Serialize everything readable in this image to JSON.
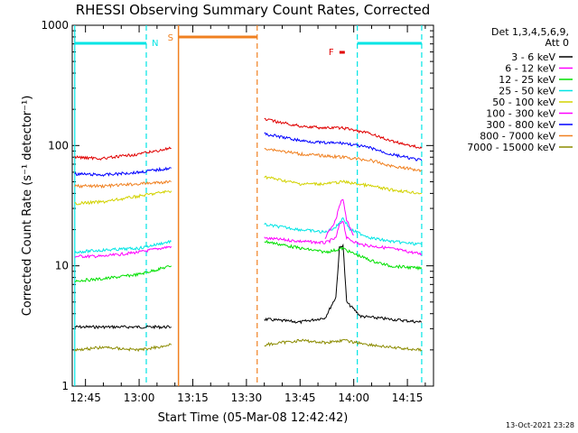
{
  "chart_data": {
    "type": "line",
    "title": "RHESSI Observing Summary Count Rates, Corrected",
    "xlabel": "Start Time (05-Mar-08 12:42:42)",
    "ylabel": "Corrected Count Rate (s⁻¹ detector⁻¹)",
    "timestamp": "13-Oct-2021 23:28",
    "x_scale": "time",
    "y_scale": "log",
    "xlim": [
      "12:42",
      "14:22"
    ],
    "ylim": [
      1,
      1000
    ],
    "x_ticks": [
      "12:45",
      "13:00",
      "13:15",
      "13:30",
      "13:45",
      "14:00",
      "14:15"
    ],
    "y_ticks": [
      "1",
      "10",
      "100",
      "1000"
    ],
    "grid": false,
    "legend_title": [
      "Det 1,3,4,5,6,9,",
      "Att 0"
    ],
    "legend_position": "right",
    "time_markers": [
      {
        "label": "N",
        "color": "#00e5e5",
        "start": "12:42",
        "end": "13:02",
        "style": "night"
      },
      {
        "label": "S",
        "color": "#f08020",
        "start": "13:11",
        "end": "13:33",
        "style": "saa"
      },
      {
        "label": "F",
        "color": "#e00000",
        "start": "13:56",
        "end": "13:57",
        "style": "flare"
      },
      {
        "label": "",
        "color": "#00e5e5",
        "start": "14:01",
        "end": "14:19",
        "style": "night"
      }
    ],
    "series": [
      {
        "name": "3 - 6 keV",
        "color": "#000000",
        "segments": [
          {
            "x": [
              "12:42",
              "12:50",
              "13:00",
              "13:09"
            ],
            "y": [
              3.1,
              3.1,
              3.1,
              3.1
            ]
          },
          {
            "x": [
              "13:35",
              "13:45",
              "13:52",
              "13:55",
              "13:56",
              "13:57",
              "13:58",
              "14:02",
              "14:10",
              "14:19"
            ],
            "y": [
              3.6,
              3.4,
              3.7,
              5.5,
              14,
              15,
              5.0,
              3.8,
              3.6,
              3.4
            ]
          }
        ]
      },
      {
        "name": "6 - 12 keV",
        "color": "#ff00ff",
        "segments": [
          {
            "x": [
              "12:42",
              "12:50",
              "13:00",
              "13:09"
            ],
            "y": [
              12,
              12,
              13,
              14.5
            ]
          },
          {
            "x": [
              "13:35",
              "13:45",
              "13:52",
              "13:55",
              "13:56",
              "13:57",
              "13:58",
              "14:02",
              "14:10",
              "14:19"
            ],
            "y": [
              17,
              16,
              15.5,
              17,
              22,
              24,
              17,
              15,
              14,
              12.5
            ]
          }
        ]
      },
      {
        "name": "12 - 25 keV",
        "color": "#00e000",
        "segments": [
          {
            "x": [
              "12:42",
              "12:50",
              "13:00",
              "13:09"
            ],
            "y": [
              7.5,
              7.8,
              8.5,
              10
            ]
          },
          {
            "x": [
              "13:35",
              "13:45",
              "13:52",
              "13:55",
              "13:57",
              "13:59",
              "14:05",
              "14:10",
              "14:19"
            ],
            "y": [
              16,
              14,
              13,
              13.5,
              14,
              13,
              11,
              10,
              9.5
            ]
          }
        ]
      },
      {
        "name": "25 - 50 keV",
        "color": "#00e5e5",
        "segments": [
          {
            "x": [
              "12:42",
              "12:50",
              "13:00",
              "13:09"
            ],
            "y": [
              13,
              13.5,
              14,
              16
            ]
          },
          {
            "x": [
              "13:35",
              "13:45",
              "13:52",
              "13:55",
              "13:57",
              "13:59",
              "14:05",
              "14:10",
              "14:19"
            ],
            "y": [
              22,
              20,
              19,
              21,
              25,
              20,
              17,
              16,
              15
            ]
          }
        ]
      },
      {
        "name": "50 - 100 keV",
        "color": "#d2d200",
        "segments": [
          {
            "x": [
              "12:42",
              "12:50",
              "13:00",
              "13:09"
            ],
            "y": [
              33,
              34,
              38,
              42
            ]
          },
          {
            "x": [
              "13:35",
              "13:45",
              "13:52",
              "13:57",
              "14:05",
              "14:10",
              "14:19"
            ],
            "y": [
              55,
              48,
              48,
              50,
              46,
              43,
              40
            ]
          }
        ]
      },
      {
        "name": "100 - 300 keV",
        "color": "#ff00ff",
        "segments": [
          {
            "x": [
              "13:52",
              "13:55",
              "13:56",
              "13:57",
              "13:58",
              "14:00"
            ],
            "y": [
              17,
              24,
              32,
              36,
              24,
              18
            ]
          }
        ]
      },
      {
        "name": "300 - 800 keV",
        "color": "#0000ff",
        "segments": [
          {
            "x": [
              "12:42",
              "12:50",
              "13:00",
              "13:09"
            ],
            "y": [
              58,
              57,
              60,
              65
            ]
          },
          {
            "x": [
              "13:35",
              "13:45",
              "13:52",
              "13:57",
              "14:05",
              "14:10",
              "14:19"
            ],
            "y": [
              125,
              110,
              105,
              105,
              95,
              85,
              75
            ]
          }
        ]
      },
      {
        "name": "800 - 7000 keV",
        "color": "#f08020",
        "segments": [
          {
            "x": [
              "12:42",
              "12:50",
              "13:00",
              "13:09"
            ],
            "y": [
              46,
              46,
              48,
              50
            ]
          },
          {
            "x": [
              "13:35",
              "13:45",
              "13:52",
              "13:57",
              "14:05",
              "14:10",
              "14:19"
            ],
            "y": [
              95,
              85,
              82,
              80,
              75,
              68,
              62
            ]
          }
        ]
      },
      {
        "name": "7000 - 15000 keV",
        "color": "#8b8b00",
        "segments": [
          {
            "x": [
              "12:42",
              "12:50",
              "13:00",
              "13:09"
            ],
            "y": [
              2.0,
              2.1,
              2.0,
              2.2
            ]
          },
          {
            "x": [
              "13:35",
              "13:45",
              "13:52",
              "13:57",
              "14:05",
              "14:10",
              "14:19"
            ],
            "y": [
              2.2,
              2.4,
              2.3,
              2.4,
              2.2,
              2.1,
              2.0
            ]
          }
        ]
      }
    ],
    "extra_red_series": {
      "color": "#e00000",
      "segments": [
        {
          "x": [
            "12:42",
            "12:50",
            "13:00",
            "13:09"
          ],
          "y": [
            80,
            78,
            85,
            95
          ]
        },
        {
          "x": [
            "13:35",
            "13:45",
            "13:52",
            "13:57",
            "14:05",
            "14:10",
            "14:19"
          ],
          "y": [
            165,
            145,
            140,
            140,
            125,
            110,
            95
          ]
        }
      ]
    }
  }
}
